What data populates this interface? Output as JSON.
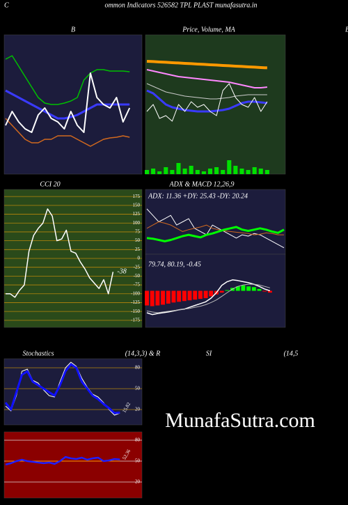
{
  "header": {
    "letter": "C",
    "title": "ommon  Indicators 526582  TPL PLAST munafasutra.in",
    "edge": "B"
  },
  "watermark": "MunafaSutra.com",
  "chart_data": [
    {
      "type": "line",
      "title": "B",
      "background": "#1c1c3c",
      "ylim": [
        0,
        100
      ],
      "series": [
        {
          "color": "#00c000",
          "values": [
            82.5,
            85,
            77.5,
            70,
            62.5,
            55,
            51,
            50,
            50,
            51,
            52.5,
            55,
            67.5,
            72.5,
            75,
            75,
            74,
            74,
            74,
            73.5
          ]
        },
        {
          "color": "#d2691e",
          "values": [
            40,
            35,
            30,
            25,
            22.5,
            22.5,
            25,
            25,
            27.5,
            27.5,
            27.5,
            25,
            22.5,
            20,
            22.5,
            25,
            26,
            26.5,
            27.5,
            26.5
          ]
        },
        {
          "color": "#3a3aff",
          "width": 3,
          "values": [
            60,
            57.5,
            55,
            52.5,
            50,
            47.5,
            45,
            42.5,
            40,
            40,
            41,
            42.5,
            45,
            47.5,
            50,
            50,
            50,
            50,
            50,
            50
          ]
        },
        {
          "color": "#ffffff",
          "width": 2,
          "values": [
            35,
            45,
            37.5,
            32.5,
            30,
            42.5,
            47.5,
            40,
            37.5,
            32.5,
            45,
            35,
            30,
            72.5,
            55,
            50,
            47.5,
            55,
            37.5,
            47.5
          ]
        }
      ]
    },
    {
      "type": "line",
      "title": "Price,  Volume, MA",
      "background": "#1e3a1e",
      "ylim": [
        0,
        100
      ],
      "volume": {
        "color": "#00e000",
        "values": [
          3,
          4,
          2,
          5,
          3,
          8,
          4,
          6,
          3,
          2,
          4,
          5,
          3,
          10,
          6,
          4,
          3,
          5,
          4,
          3
        ]
      },
      "series": [
        {
          "color": "#ff9900",
          "width": 4,
          "values": [
            81,
            80.8,
            80.5,
            80.3,
            80,
            79.8,
            79.5,
            79.3,
            79,
            78.8,
            78.5,
            78.3,
            78,
            77.8,
            77.5,
            77.3,
            77,
            76.8,
            76.5,
            76.3
          ]
        },
        {
          "color": "#ff88ff",
          "width": 2,
          "values": [
            75,
            74,
            73,
            72,
            71,
            70,
            69.5,
            69,
            68.5,
            68,
            67.5,
            67,
            66.5,
            66,
            65,
            64,
            63,
            62,
            62,
            62.5
          ]
        },
        {
          "color": "#cccccc",
          "width": 1,
          "values": [
            65,
            63,
            61,
            59,
            58,
            57,
            56,
            55.5,
            55,
            54.5,
            54,
            54,
            54.5,
            55,
            56,
            56.5,
            57,
            57,
            57,
            57
          ]
        },
        {
          "color": "#3a3aff",
          "width": 3,
          "values": [
            60,
            58,
            54,
            50,
            48,
            47,
            46,
            45.5,
            45,
            45,
            45,
            45.5,
            46,
            47,
            49,
            51,
            52,
            52,
            51.5,
            51
          ]
        },
        {
          "color": "#ffffff",
          "width": 1,
          "values": [
            45,
            50,
            40,
            42,
            38,
            50,
            45,
            52,
            48,
            50,
            45,
            42,
            60,
            65,
            55,
            50,
            48,
            55,
            45,
            52
          ]
        }
      ]
    },
    {
      "type": "line",
      "title": "CCI 20",
      "background": "#2a4a1a",
      "grid": true,
      "grid_color": "#b8860b",
      "ylim": [
        -195,
        195
      ],
      "yticks": [
        175,
        150,
        125,
        100,
        75,
        50,
        25,
        0,
        -25,
        -50,
        -75,
        -100,
        -125,
        -150,
        -175
      ],
      "series": [
        {
          "color": "#ffffff",
          "width": 1.5,
          "last_label": true,
          "values": [
            -100,
            -100,
            -110,
            -90,
            -75,
            20,
            65,
            85,
            100,
            140,
            120,
            50,
            55,
            80,
            20,
            15,
            -10,
            -30,
            -55,
            -70,
            -85,
            -60,
            -100,
            -38
          ]
        }
      ]
    },
    {
      "type": "line",
      "title": "ADX  & MACD 12,26,9",
      "subtitle": "ADX: 11.36  +DY: 25.43 -DY: 20.24",
      "background": "#1c1c3c",
      "ylim": [
        0,
        100
      ],
      "series": [
        {
          "color": "#ffffff",
          "width": 1,
          "values": [
            70,
            60,
            50,
            55,
            60,
            45,
            50,
            55,
            40,
            35,
            30,
            45,
            40,
            35,
            30,
            25,
            30,
            28,
            32,
            30,
            25,
            20,
            15,
            10
          ]
        },
        {
          "color": "#d2691e",
          "width": 1,
          "values": [
            40,
            45,
            50,
            48,
            45,
            40,
            35,
            38,
            40,
            42,
            45,
            40,
            38,
            36,
            35,
            34,
            33,
            32,
            30,
            31,
            33,
            32,
            30,
            30
          ]
        },
        {
          "color": "#00ff00",
          "width": 3,
          "values": [
            25,
            24,
            22,
            20,
            22,
            25,
            28,
            30,
            28,
            26,
            30,
            32,
            35,
            38,
            40,
            42,
            38,
            36,
            38,
            40,
            38,
            35,
            33,
            38
          ]
        }
      ]
    },
    {
      "type": "bar",
      "subtitle": "79.74,  80.19,  -0.45",
      "background": "#1c1c3c",
      "ylim": [
        -100,
        100
      ],
      "bars": {
        "color": "#ff0000",
        "up_color": "#00ff00",
        "values": [
          -40,
          -42,
          -40,
          -38,
          -35,
          -32,
          -30,
          -28,
          -26,
          -24,
          -22,
          -20,
          -15,
          -10,
          -5,
          2,
          8,
          12,
          15,
          12,
          10,
          5,
          -2,
          -5
        ]
      },
      "series": [
        {
          "color": "#ffffff",
          "width": 1.5,
          "values": [
            -60,
            -65,
            -62,
            -60,
            -58,
            -55,
            -52,
            -50,
            -45,
            -40,
            -35,
            -30,
            -20,
            -5,
            15,
            25,
            30,
            28,
            25,
            22,
            18,
            12,
            5,
            0
          ]
        },
        {
          "color": "#bbbbbb",
          "width": 1,
          "values": [
            -55,
            -58,
            -60,
            -58,
            -56,
            -54,
            -52,
            -50,
            -48,
            -45,
            -42,
            -38,
            -32,
            -25,
            -15,
            -5,
            5,
            12,
            16,
            18,
            18,
            16,
            12,
            8
          ]
        }
      ]
    },
    {
      "type": "line",
      "title": "Stochastics",
      "subtitle": "(14,3,3) & R",
      "background": "#1c1c3c",
      "grid": true,
      "grid_color": "#b8860b",
      "ylim": [
        -2,
        93
      ],
      "yticks": [
        80,
        50,
        20
      ],
      "series": [
        {
          "color": "#ffffff",
          "width": 1,
          "values": [
            25,
            18,
            40,
            75,
            78,
            62,
            58,
            48,
            40,
            38,
            60,
            80,
            88,
            82,
            65,
            52,
            42,
            38,
            30,
            20,
            12,
            15
          ]
        },
        {
          "color": "#1010ff",
          "width": 3,
          "last_label": true,
          "values": [
            30,
            20,
            45,
            70,
            75,
            60,
            55,
            50,
            45,
            40,
            55,
            75,
            85,
            80,
            60,
            50,
            40,
            35,
            28,
            22,
            15,
            15.82
          ]
        }
      ]
    },
    {
      "type": "line",
      "title": "SI",
      "subtitle": "(14,5",
      "background": "#8b0000",
      "grid": true,
      "grid_color": "#dddddd",
      "ylim": [
        -3,
        92
      ],
      "yticks": [
        80,
        50,
        20
      ],
      "series": [
        {
          "color": "#ff9900",
          "width": 1,
          "values": [
            50,
            50,
            50,
            50,
            50,
            50,
            50,
            50,
            50,
            50,
            50,
            50,
            50,
            50,
            50,
            50,
            50,
            50,
            50,
            50,
            50,
            50
          ]
        },
        {
          "color": "#2020ff",
          "width": 2.5,
          "last_label": true,
          "values": [
            45,
            47,
            50,
            52,
            50,
            49,
            48,
            47,
            48,
            46,
            50,
            56,
            54,
            53,
            55,
            52,
            54,
            55,
            50,
            51,
            53,
            52.36
          ]
        }
      ]
    }
  ]
}
